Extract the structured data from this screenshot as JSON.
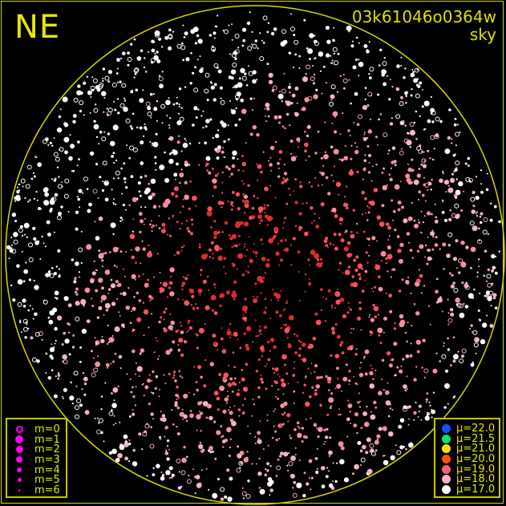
{
  "header": {
    "direction": "NE",
    "frame_id": "03k61046o0364w",
    "mode": "sky"
  },
  "magnitude_legend": {
    "color": "#ff00ff",
    "items": [
      {
        "label": "m=0",
        "hollow": true
      },
      {
        "label": "m=1"
      },
      {
        "label": "m=2"
      },
      {
        "label": "m=3"
      },
      {
        "label": "m=4"
      },
      {
        "label": "m=5"
      },
      {
        "label": "m=6"
      }
    ]
  },
  "mu_legend": {
    "items": [
      {
        "label": "μ=22.0",
        "color": "#1050ff"
      },
      {
        "label": "μ=21.5",
        "color": "#10e070"
      },
      {
        "label": "μ=21.0",
        "color": "#ffe000"
      },
      {
        "label": "μ=20.0",
        "color": "#ff5010"
      },
      {
        "label": "μ=19.0",
        "color": "#ff6070"
      },
      {
        "label": "μ=18.0",
        "color": "#ffb0c0"
      },
      {
        "label": "μ=17.0",
        "color": "#ffffff"
      }
    ]
  },
  "colors": {
    "frame": "#d8d800",
    "horizon": "#d8d800",
    "background": "#000000"
  }
}
